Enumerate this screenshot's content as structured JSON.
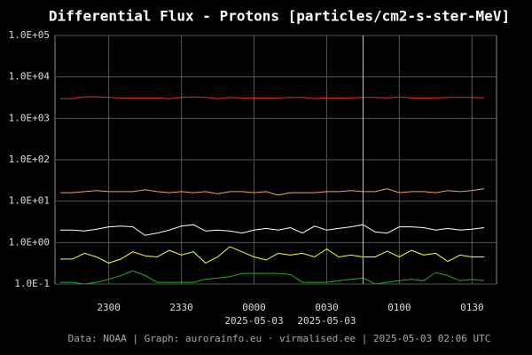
{
  "chart_data": {
    "type": "line",
    "title": "Differential Flux - Protons [particles/cm2-s-ster-MeV]",
    "footer": "Data: NOAA | Graph: aurorainfo.eu · virmalised.ee | 2025-05-03 02:06 UTC",
    "log_y": true,
    "grid": true,
    "x": [
      "2240",
      "2245",
      "2250",
      "2255",
      "2300",
      "2305",
      "2310",
      "2315",
      "2320",
      "2325",
      "2330",
      "2335",
      "2340",
      "2345",
      "2350",
      "2355",
      "0000",
      "0005",
      "0010",
      "0015",
      "0020",
      "0025",
      "0030",
      "0035",
      "0040",
      "0045",
      "0050",
      "0055",
      "0100",
      "0105",
      "0110",
      "0115",
      "0120",
      "0125",
      "0130",
      "0135"
    ],
    "xticks": [
      "2300",
      "2330",
      "0000",
      "0030",
      "0100",
      "0130"
    ],
    "xtick_dates": [
      null,
      null,
      "2025-05-03",
      "2025-05-03",
      null,
      null
    ],
    "marker_x": "0045",
    "marker_color": "#90ee90",
    "ylim": [
      0.1,
      100000
    ],
    "yticks": [
      {
        "value": 100000,
        "label": "1.0E+05"
      },
      {
        "value": 10000,
        "label": "1.0E+04"
      },
      {
        "value": 1000,
        "label": "1.0E+03"
      },
      {
        "value": 100,
        "label": "1.0E+02"
      },
      {
        "value": 10,
        "label": "1.0E+01"
      },
      {
        "value": 1,
        "label": "1.0E+00"
      },
      {
        "value": 0.1,
        "label": "1.0E-1"
      }
    ],
    "series": [
      {
        "color": "#e03030",
        "values": [
          3000,
          3000,
          3300,
          3300,
          3200,
          3100,
          3100,
          3100,
          3100,
          3000,
          3200,
          3300,
          3200,
          3000,
          3200,
          3100,
          3100,
          3100,
          3100,
          3200,
          3200,
          3000,
          3100,
          3100,
          3100,
          3200,
          3200,
          3100,
          3300,
          3100,
          3100,
          3100,
          3200,
          3200,
          3200,
          3100
        ]
      },
      {
        "color": "#ffa040",
        "values": [
          16,
          16,
          17,
          18,
          17,
          17,
          17,
          19,
          17,
          16,
          17,
          16,
          17,
          15,
          17,
          17,
          16,
          17,
          14,
          16,
          16,
          16,
          17,
          17,
          18,
          17,
          17,
          20,
          16,
          17,
          17,
          16,
          18,
          17,
          18,
          20
        ]
      },
      {
        "color": "#ffffff",
        "values": [
          2.0,
          2.0,
          1.9,
          2.1,
          2.4,
          2.5,
          2.4,
          1.5,
          1.7,
          2.0,
          2.5,
          2.7,
          1.9,
          2.0,
          1.9,
          1.7,
          2.0,
          2.2,
          2.0,
          2.3,
          1.7,
          2.5,
          2.0,
          2.2,
          2.4,
          2.7,
          1.8,
          1.7,
          2.4,
          2.4,
          2.3,
          2.0,
          2.2,
          2.0,
          2.1,
          2.3
        ]
      },
      {
        "color": "#ffff30",
        "values": [
          0.4,
          0.4,
          0.55,
          0.45,
          0.32,
          0.4,
          0.6,
          0.48,
          0.45,
          0.65,
          0.5,
          0.6,
          0.32,
          0.45,
          0.8,
          0.6,
          0.45,
          0.38,
          0.55,
          0.5,
          0.55,
          0.45,
          0.7,
          0.45,
          0.5,
          0.45,
          0.45,
          0.62,
          0.45,
          0.65,
          0.5,
          0.55,
          0.35,
          0.5,
          0.45,
          0.45
        ]
      },
      {
        "color": "#20b020",
        "values": [
          0.11,
          0.11,
          0.1,
          0.11,
          0.13,
          0.16,
          0.21,
          0.16,
          0.11,
          0.11,
          0.11,
          0.11,
          0.13,
          0.14,
          0.15,
          0.18,
          0.18,
          0.18,
          0.18,
          0.17,
          0.11,
          0.11,
          0.11,
          0.12,
          0.13,
          0.14,
          0.1,
          0.11,
          0.12,
          0.13,
          0.12,
          0.19,
          0.16,
          0.12,
          0.13,
          0.12
        ]
      }
    ]
  }
}
